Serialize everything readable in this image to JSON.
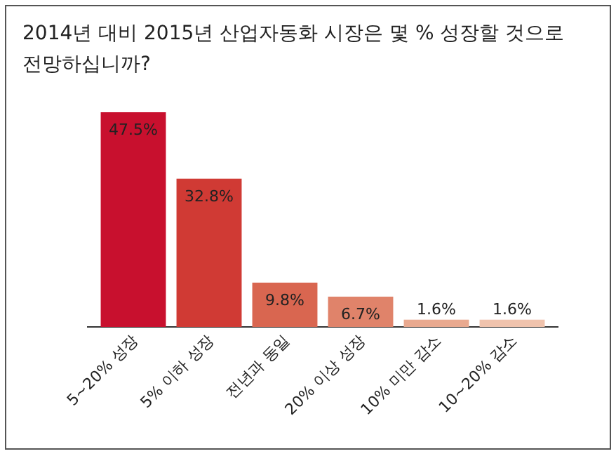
{
  "chart_data": {
    "type": "bar",
    "title": "2014년 대비 2015년 산업자동화 시장은 몇 % 성장할 것으로 전망하십니까?",
    "categories": [
      "5~20% 성장",
      "5% 이하 성장",
      "전년과 동일",
      "20% 이상 성장",
      "10% 미만 감소",
      "10~20% 감소"
    ],
    "values": [
      47.5,
      32.8,
      9.8,
      6.7,
      1.6,
      1.6
    ],
    "value_labels": [
      "47.5%",
      "32.8%",
      "9.8%",
      "6.7%",
      "1.6%",
      "1.6%"
    ],
    "colors": [
      "#c8102e",
      "#d03a34",
      "#d96650",
      "#e0836a",
      "#e9a98f",
      "#f0c3ad"
    ]
  }
}
